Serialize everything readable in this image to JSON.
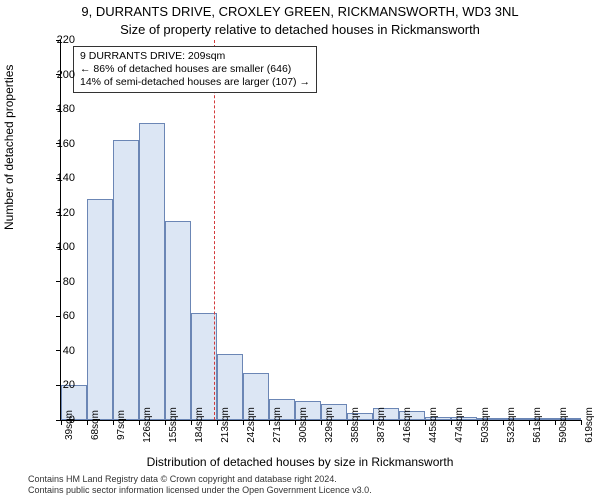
{
  "chart": {
    "type": "histogram",
    "title_main": "9, DURRANTS DRIVE, CROXLEY GREEN, RICKMANSWORTH, WD3 3NL",
    "title_sub": "Size of property relative to detached houses in Rickmansworth",
    "xlabel": "Distribution of detached houses by size in Rickmansworth",
    "ylabel": "Number of detached properties",
    "background_color": "#ffffff",
    "axis_color": "#000000",
    "bar_fill": "#dce6f4",
    "bar_border": "#6b86b5",
    "ref_line_color": "#d23a3a",
    "ylim": [
      0,
      220
    ],
    "ytick_step": 20,
    "yticks": [
      0,
      20,
      40,
      60,
      80,
      100,
      120,
      140,
      160,
      180,
      200,
      220
    ],
    "xtick_labels": [
      "39sqm",
      "68sqm",
      "97sqm",
      "126sqm",
      "155sqm",
      "184sqm",
      "213sqm",
      "242sqm",
      "271sqm",
      "300sqm",
      "329sqm",
      "358sqm",
      "387sqm",
      "416sqm",
      "445sqm",
      "474sqm",
      "503sqm",
      "532sqm",
      "561sqm",
      "590sqm",
      "619sqm"
    ],
    "bar_values": [
      20,
      128,
      162,
      172,
      115,
      62,
      38,
      27,
      12,
      11,
      9,
      4,
      7,
      5,
      2,
      2,
      1,
      0,
      0,
      1
    ],
    "reference_x_position": 0.295,
    "annotation": {
      "line1": "9 DURRANTS DRIVE: 209sqm",
      "line2": "← 86% of detached houses are smaller (646)",
      "line3": "14% of semi-detached houses are larger (107) →"
    },
    "footer1": "Contains HM Land Registry data © Crown copyright and database right 2024.",
    "footer2": "Contains public sector information licensed under the Open Government Licence v3.0.",
    "fontsize_title": 13,
    "fontsize_label": 12,
    "fontsize_tick": 11,
    "fontsize_footer": 9
  }
}
